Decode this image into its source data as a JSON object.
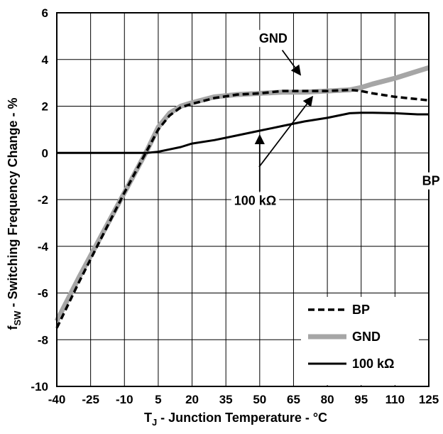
{
  "chart_data": {
    "type": "line",
    "xlabel": {
      "main": "T",
      "sub": "J",
      "rest": " - Junction Temperature - °C"
    },
    "ylabel": {
      "main": "f",
      "sub": "SW",
      "rest": " - Switching Frequency Change - %"
    },
    "xlim": [
      -40,
      125
    ],
    "ylim": [
      -10,
      6
    ],
    "x_ticks": [
      -40,
      -25,
      -10,
      5,
      20,
      35,
      50,
      65,
      80,
      95,
      110,
      125
    ],
    "x_tick_labels": [
      "-40",
      "-25",
      "-10",
      "5",
      "20",
      "35",
      "50",
      "65",
      "80",
      "95",
      "110",
      "125"
    ],
    "y_ticks": [
      -10,
      -8,
      -6,
      -4,
      -2,
      0,
      2,
      4,
      6
    ],
    "y_tick_labels": [
      "-10",
      "-8",
      "-6",
      "-4",
      "-2",
      "0",
      "2",
      "4",
      "6"
    ],
    "grid": true,
    "legend_position": "bottom-right",
    "series": [
      {
        "name": "GND",
        "color": "#a6a6a6",
        "style": "solid-thick",
        "x": [
          -40,
          -30,
          -20,
          -10,
          0,
          5,
          10,
          15,
          20,
          30,
          40,
          50,
          60,
          70,
          80,
          90,
          95,
          100,
          110,
          120,
          125
        ],
        "y": [
          -7.2,
          -5.3,
          -3.5,
          -1.7,
          0.1,
          1.1,
          1.7,
          2.0,
          2.15,
          2.4,
          2.5,
          2.55,
          2.6,
          2.6,
          2.65,
          2.7,
          2.8,
          2.95,
          3.2,
          3.5,
          3.65
        ]
      },
      {
        "name": "BP",
        "color": "#000000",
        "style": "dashed",
        "x": [
          -40,
          -30,
          -20,
          -10,
          0,
          5,
          10,
          15,
          20,
          30,
          40,
          50,
          60,
          70,
          80,
          90,
          95,
          100,
          110,
          120,
          125
        ],
        "y": [
          -7.5,
          -5.5,
          -3.6,
          -1.7,
          0.1,
          1.0,
          1.6,
          1.95,
          2.1,
          2.35,
          2.5,
          2.55,
          2.65,
          2.65,
          2.65,
          2.7,
          2.65,
          2.55,
          2.4,
          2.3,
          2.25
        ]
      },
      {
        "name": "100 kΩ",
        "color": "#000000",
        "style": "solid",
        "x": [
          -40,
          -30,
          -20,
          -10,
          -5,
          0,
          5,
          10,
          15,
          20,
          30,
          40,
          50,
          60,
          70,
          80,
          90,
          95,
          100,
          110,
          120,
          125
        ],
        "y": [
          0,
          0,
          0,
          0,
          0,
          0,
          0.05,
          0.15,
          0.25,
          0.4,
          0.55,
          0.75,
          0.95,
          1.15,
          1.35,
          1.5,
          1.7,
          1.72,
          1.72,
          1.7,
          1.65,
          1.65
        ]
      }
    ],
    "annotations": [
      {
        "text": "GND",
        "label_x": 56,
        "label_y": 4.9,
        "arrow_from": [
          60,
          4.4
        ],
        "arrow_to": [
          68,
          3.35
        ]
      },
      {
        "text": "BP",
        "label_x": 126,
        "label_y": -1.2,
        "arrow_from": [
          140,
          -0.6
        ],
        "arrow_to": [
          215,
          2.4
        ]
      },
      {
        "text": "100 kΩ",
        "label_x": 48,
        "label_y": -2.05,
        "arrow_from": [
          50,
          -1.65
        ],
        "arrow_to": [
          50,
          0.75
        ]
      }
    ],
    "legend": [
      {
        "label": "BP",
        "series": "BP"
      },
      {
        "label": "GND",
        "series": "GND"
      },
      {
        "label": "100 kΩ",
        "series": "100 kΩ"
      }
    ]
  }
}
